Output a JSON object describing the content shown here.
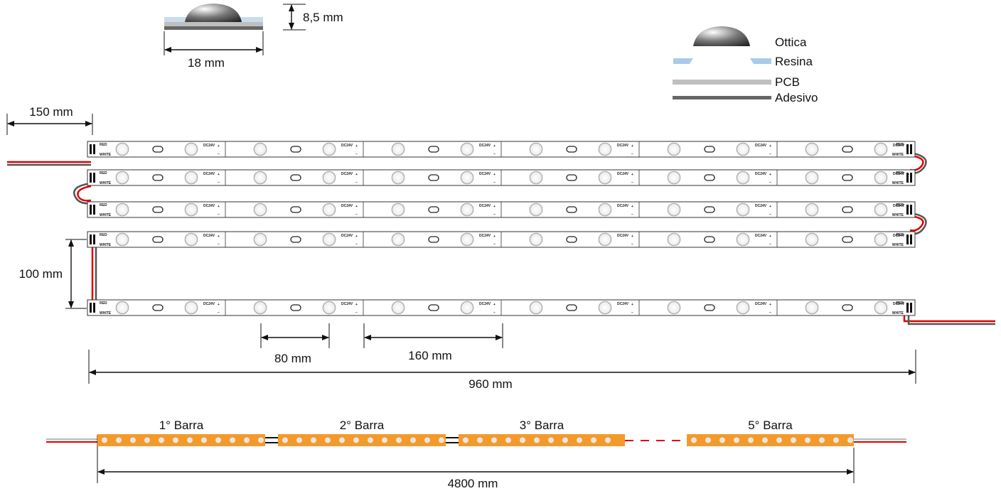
{
  "cross_section": {
    "height": "8,5 mm",
    "width": "18 mm"
  },
  "legend": {
    "items": [
      "Ottica",
      "Resina",
      "PCB",
      "Adesivo"
    ]
  },
  "dimensions": {
    "cable": "150 mm",
    "spacing": "100 mm",
    "led_pitch": "80 mm",
    "segment": "160 mm",
    "length": "960 mm"
  },
  "strip_labels": {
    "voltage": "DC24V",
    "red": "RED",
    "white": "WHITE",
    "plus": "+",
    "minus": "−"
  },
  "bars": {
    "labels": [
      "1° Barra",
      "2° Barra",
      "3° Barra",
      "5° Barra"
    ],
    "total": "4800 mm"
  }
}
